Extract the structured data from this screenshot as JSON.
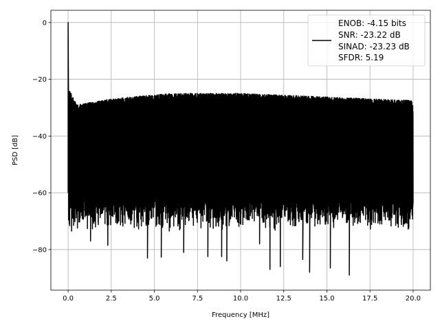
{
  "chart_data": {
    "type": "line",
    "title": "",
    "xlabel": "Frequency [MHz]",
    "ylabel": "PSD [dB]",
    "xlim": [
      -1.0,
      21.0
    ],
    "ylim": [
      -94.3,
      4.3
    ],
    "xticks": [
      0.0,
      2.5,
      5.0,
      7.5,
      10.0,
      12.5,
      15.0,
      17.5,
      20.0
    ],
    "xtick_labels": [
      "0.0",
      "2.5",
      "5.0",
      "7.5",
      "10.0",
      "12.5",
      "15.0",
      "17.5",
      "20.0"
    ],
    "yticks": [
      0,
      -20,
      -40,
      -60,
      -80
    ],
    "ytick_labels": [
      "0",
      "−20",
      "−40",
      "−60",
      "−80"
    ],
    "grid": true,
    "legend_position": "top-right",
    "line_color": "#000000",
    "series": [
      {
        "name": "ENOB: -4.15 bits\nSNR: -23.22 dB\nSINAD: -23.23 dB\nSFDR: 5.19",
        "description_of_values": "dense noise-like PSD",
        "peak": {
          "x": 0.0,
          "y": 0.0
        },
        "upper_envelope": {
          "x": [
            0.1,
            0.5,
            1.5,
            2.5,
            4.0,
            6.0,
            8.0,
            10.0,
            12.0,
            14.0,
            16.0,
            18.0,
            20.0
          ],
          "y": [
            -23,
            -28,
            -27,
            -26,
            -25,
            -24,
            -24,
            -24,
            -24.5,
            -25,
            -25.5,
            -26,
            -26.5
          ]
        },
        "lower_typical": -68,
        "deep_minima": {
          "x": [
            4.6,
            5.4,
            6.7,
            8.1,
            8.9,
            9.2,
            11.1,
            11.7,
            12.3,
            13.6,
            14.0,
            15.2,
            16.3,
            0.2,
            1.3,
            2.3
          ],
          "y": [
            -83,
            -82.7,
            -81,
            -82.5,
            -82.5,
            -84,
            -78,
            -87,
            -86,
            -83.5,
            -88,
            -86.5,
            -89,
            -73.5,
            -77,
            -78.5
          ]
        }
      }
    ]
  },
  "legend": {
    "lines": [
      "ENOB: -4.15 bits",
      "SNR: -23.22 dB",
      "SINAD: -23.23 dB",
      "SFDR: 5.19"
    ]
  }
}
